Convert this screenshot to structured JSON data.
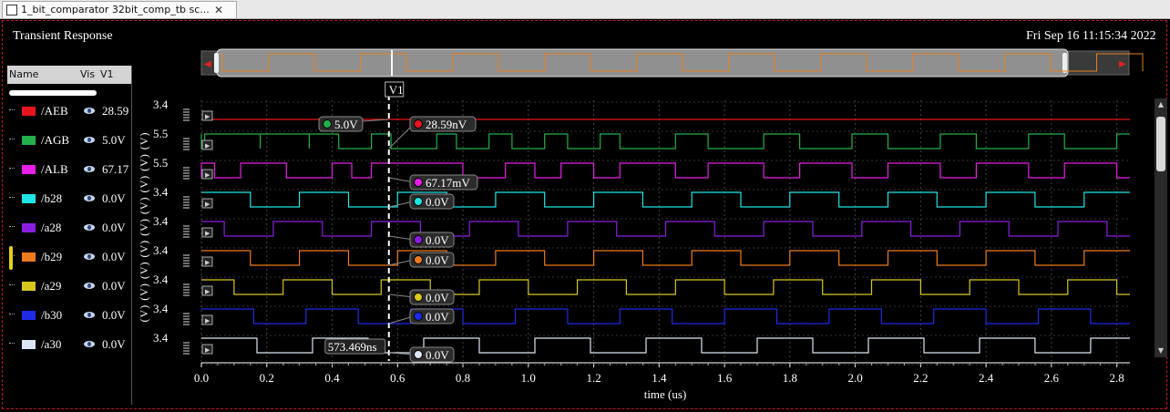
{
  "tab": {
    "title": "1_bit_comparator 32bit_comp_tb sc...",
    "close": "✕"
  },
  "window": {
    "title": "Transient Response",
    "date": "Fri Sep 16 11:15:34 2022"
  },
  "legend": {
    "headers": {
      "name": "Name",
      "vis": "Vis",
      "v1": "V1"
    },
    "rows": [
      {
        "name": "/AEB",
        "color": "#e8141e",
        "value": "28.59"
      },
      {
        "name": "/AGB",
        "color": "#22b04a",
        "value": "5.0V"
      },
      {
        "name": "/ALB",
        "color": "#e61ee6",
        "value": "67.17"
      },
      {
        "name": "/b28",
        "color": "#1ee6e6",
        "value": "0.0V"
      },
      {
        "name": "/a28",
        "color": "#8a1ee0",
        "value": "0.0V"
      },
      {
        "name": "/b29",
        "color": "#ee7a1e",
        "value": "0.0V"
      },
      {
        "name": "/a29",
        "color": "#d8c81e",
        "value": "0.0V"
      },
      {
        "name": "/b30",
        "color": "#1e2ae6",
        "value": "0.0V"
      },
      {
        "name": "/a30",
        "color": "#dce6f4",
        "value": "0.0V"
      }
    ]
  },
  "y_axis": {
    "label": "(V) (V) (V) (V) (V) (V) (V) (V) (V)",
    "scales": [
      "3.4",
      "5.5",
      "5.5",
      "3.4",
      "3.4",
      "3.4",
      "3.4",
      "3.4",
      "3.4"
    ]
  },
  "cursor": {
    "name": "V1",
    "time_readout": "573.469ns",
    "markers": [
      {
        "text": "5.0V",
        "color": "#22b04a"
      },
      {
        "text": "28.59nV",
        "color": "#e8141e"
      },
      {
        "text": "67.17mV",
        "color": "#e61ee6"
      },
      {
        "text": "0.0V",
        "color": "#1ee6e6"
      },
      {
        "text": "0.0V",
        "color": "#8a1ee0"
      },
      {
        "text": "0.0V",
        "color": "#ee7a1e"
      },
      {
        "text": "0.0V",
        "color": "#d8c81e"
      },
      {
        "text": "0.0V",
        "color": "#1e2ae6"
      },
      {
        "text": "0.0V",
        "color": "#dce6f4"
      }
    ]
  },
  "chart_data": {
    "type": "line",
    "xlabel": "time (us)",
    "xlim": [
      0,
      2.84
    ],
    "x_ticks": [
      "0.0",
      "0.2",
      "0.4",
      "0.6",
      "0.8",
      "1.0",
      "1.2",
      "1.4",
      "1.6",
      "1.8",
      "2.0",
      "2.2",
      "2.4",
      "2.6",
      "2.8"
    ],
    "cursor_x": 0.573469,
    "series": [
      {
        "name": "/AEB",
        "kind": "flat",
        "level": 0
      },
      {
        "name": "/AGB",
        "kind": "digital",
        "transitions": [
          0.0,
          0.01,
          0.18,
          0.18,
          0.33,
          0.33,
          0.42,
          0.52,
          0.58,
          0.72,
          0.78,
          0.88,
          0.95,
          1.05,
          1.12,
          1.22,
          1.28,
          1.45,
          1.55,
          1.72,
          1.83,
          1.99,
          2.1,
          2.26,
          2.37,
          2.53,
          2.64,
          2.8
        ],
        "start_high": true
      },
      {
        "name": "/ALB",
        "kind": "digital",
        "transitions": [
          0.0,
          0.04,
          0.12,
          0.26,
          0.4,
          0.46,
          0.52,
          0.8,
          0.93,
          1.02,
          1.1,
          1.2,
          1.28,
          1.45,
          1.55,
          1.72,
          1.83,
          1.99,
          2.1,
          2.26,
          2.37,
          2.53,
          2.64,
          2.8
        ],
        "start_high": false
      },
      {
        "name": "/b28",
        "kind": "clock",
        "half_period": 0.15,
        "phase": 0.0,
        "start_high": true
      },
      {
        "name": "/a28",
        "kind": "clock",
        "half_period": 0.15,
        "phase": 0.07,
        "start_high": true
      },
      {
        "name": "/b29",
        "kind": "clock",
        "half_period": 0.15,
        "phase": 0.15,
        "start_high": true
      },
      {
        "name": "/a29",
        "kind": "clock",
        "half_period": 0.15,
        "phase": 0.1,
        "start_high": true
      },
      {
        "name": "/b30",
        "kind": "clock",
        "half_period": 0.16,
        "phase": 0.16,
        "start_high": true
      },
      {
        "name": "/a30",
        "kind": "clock",
        "half_period": 0.17,
        "phase": 0.0,
        "start_high": true
      }
    ]
  }
}
